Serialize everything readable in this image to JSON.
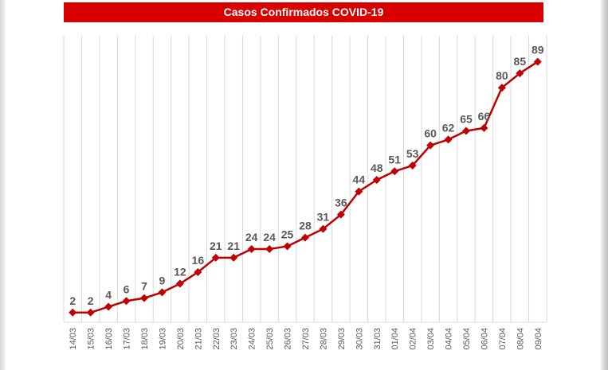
{
  "chart_data": {
    "type": "line",
    "title": "Casos Confirmados COVID-19",
    "categories": [
      "14/03",
      "15/03",
      "16/03",
      "17/03",
      "18/03",
      "19/03",
      "20/03",
      "21/03",
      "22/03",
      "23/03",
      "24/03",
      "25/03",
      "26/03",
      "27/03",
      "28/03",
      "29/03",
      "30/03",
      "31/03",
      "01/04",
      "02/04",
      "03/04",
      "04/04",
      "05/04",
      "06/04",
      "07/04",
      "08/04",
      "09/04"
    ],
    "series": [
      {
        "values": [
          2,
          2,
          4,
          6,
          7,
          9,
          12,
          16,
          21,
          21,
          24,
          24,
          25,
          28,
          31,
          36,
          44,
          48,
          51,
          53,
          60,
          62,
          65,
          66,
          80,
          85,
          89
        ]
      }
    ],
    "xlabel": "",
    "ylabel": "",
    "ylim": [
      0,
      98
    ],
    "grid": "vertical",
    "line_color": "#c00000",
    "marker": "diamond",
    "label_color": "#595959",
    "title_bar_color": "#d90000"
  }
}
